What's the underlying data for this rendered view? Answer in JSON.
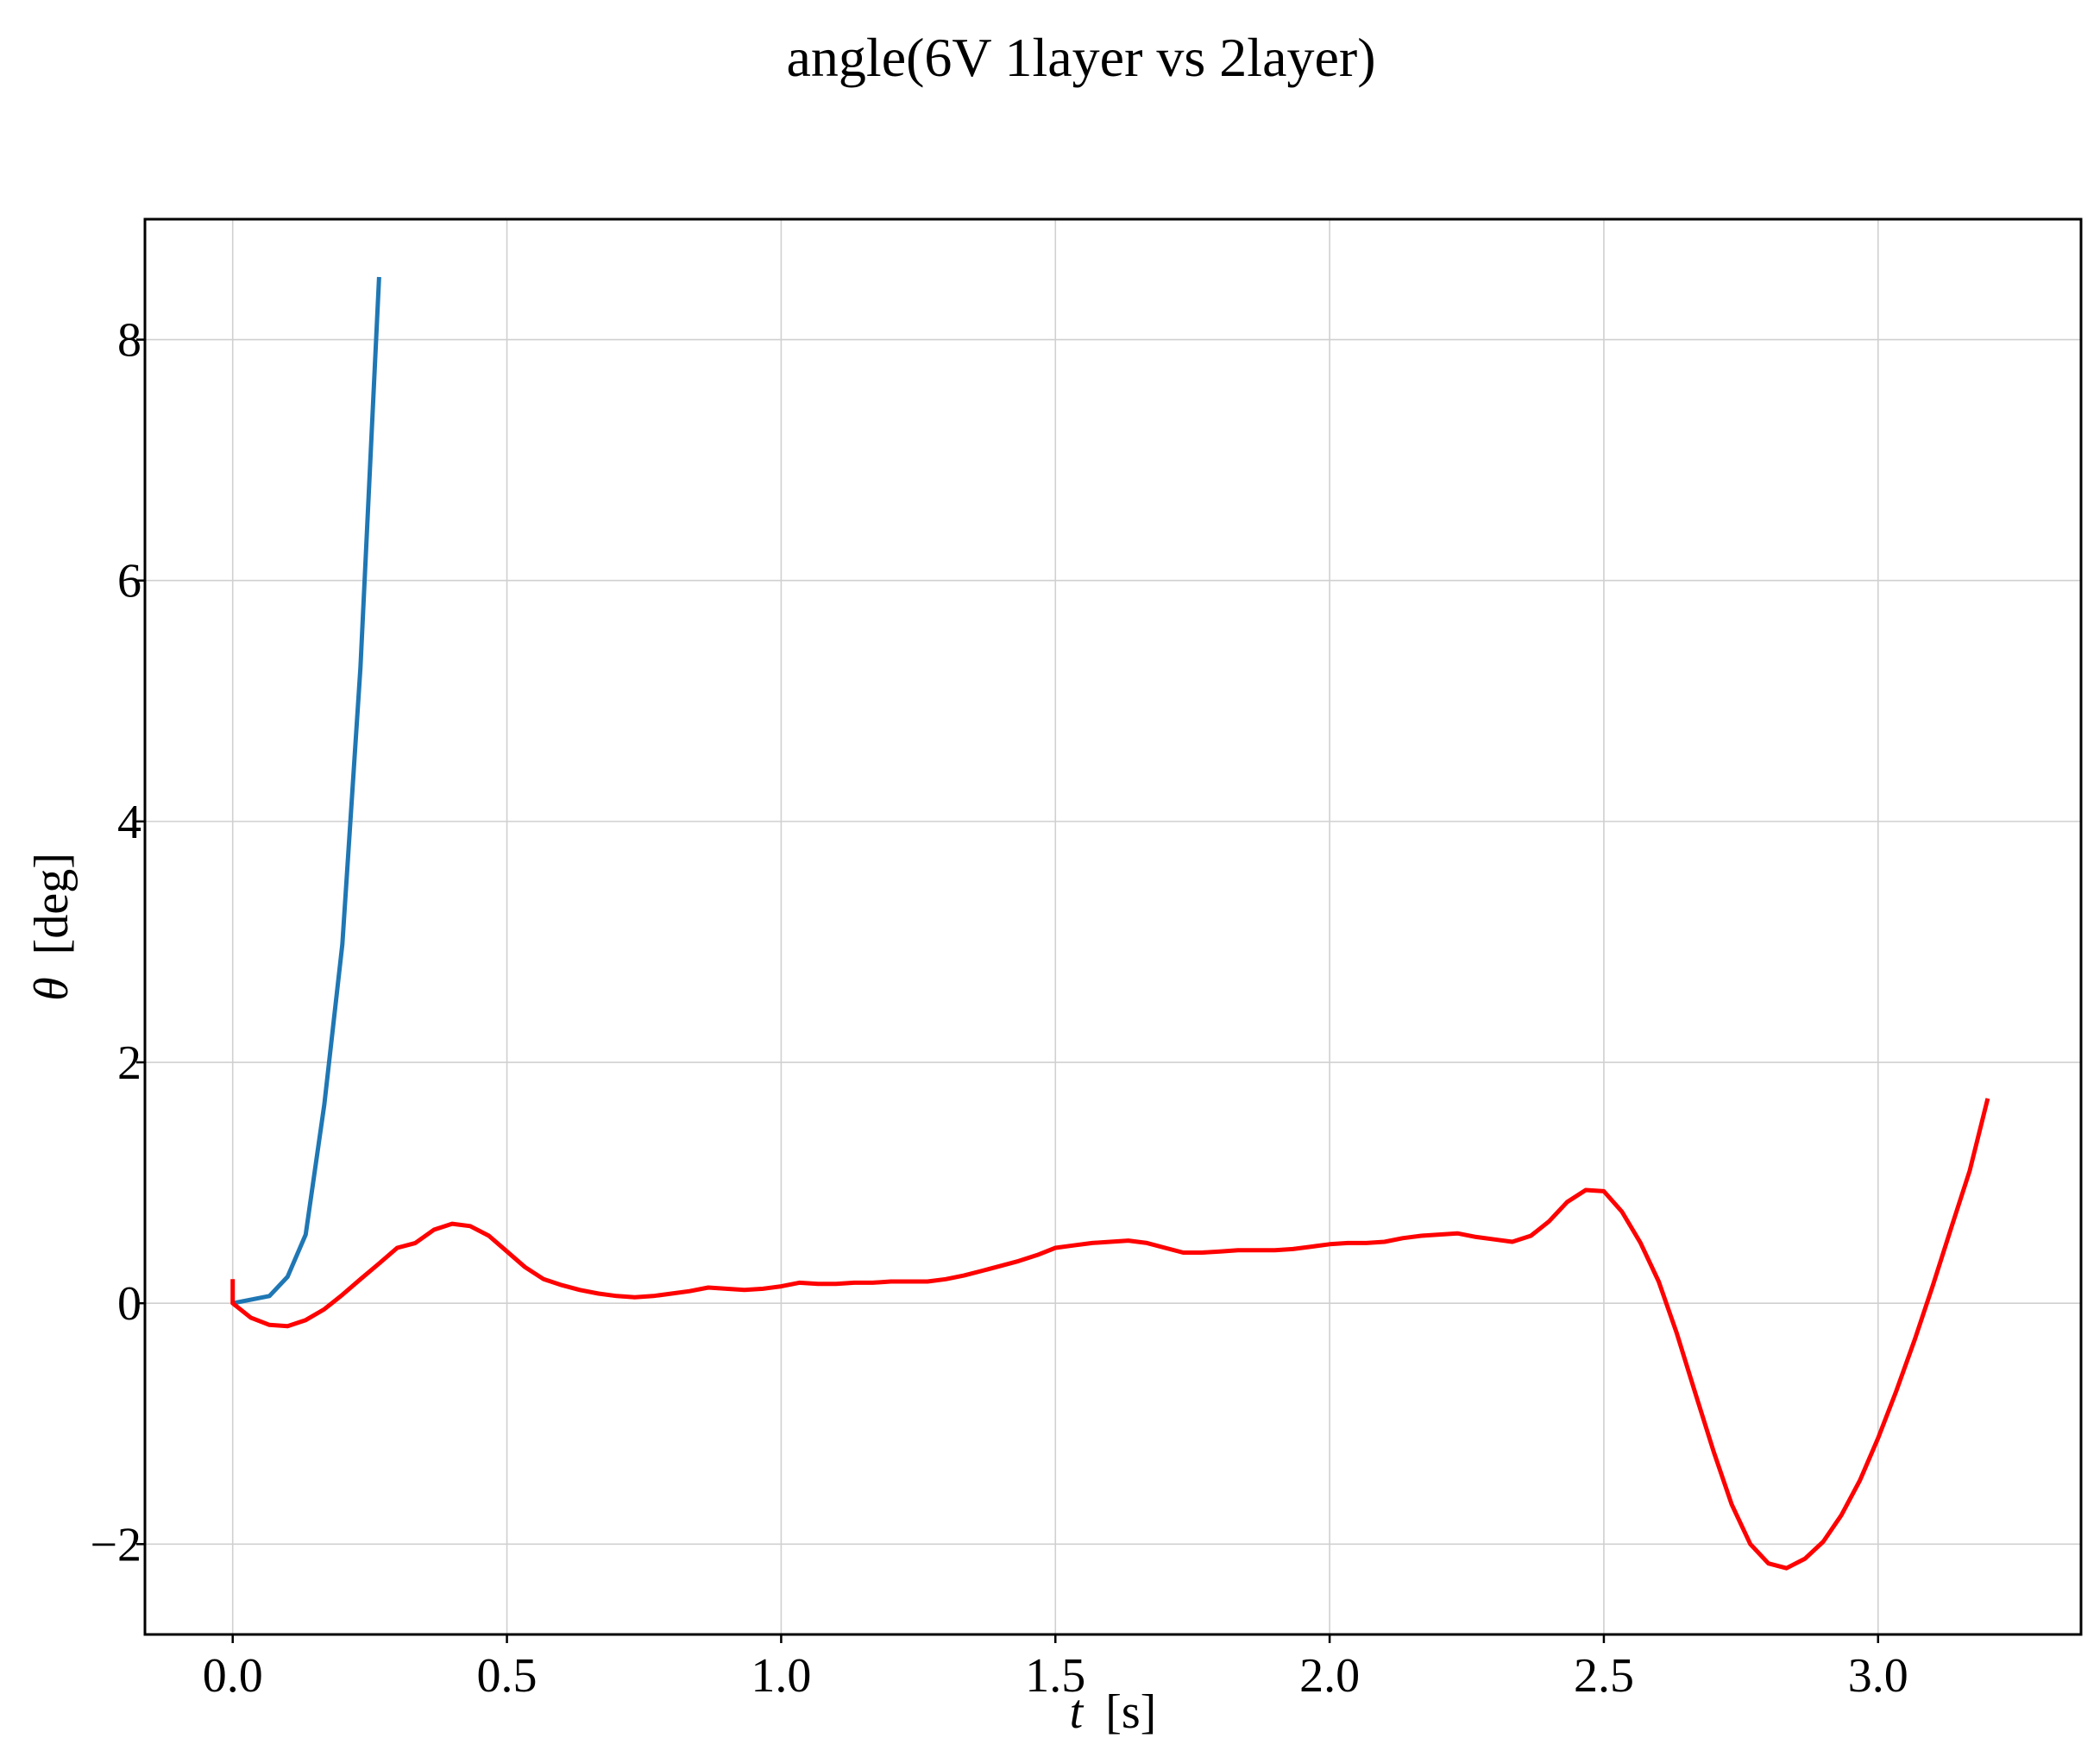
{
  "chart_data": {
    "type": "line",
    "title": "angle(6V 1layer vs 2layer)",
    "xlabel_var": "t",
    "xlabel_unit": "[s]",
    "ylabel_var": "θ",
    "ylabel_unit": "[deg]",
    "xlim": [
      -0.16,
      3.37
    ],
    "ylim": [
      -2.75,
      9.0
    ],
    "xticks": [
      0.0,
      0.5,
      1.0,
      1.5,
      2.0,
      2.5,
      3.0
    ],
    "xtick_labels": [
      "0.0",
      "0.5",
      "1.0",
      "1.5",
      "2.0",
      "2.5",
      "3.0"
    ],
    "yticks": [
      -2,
      0,
      2,
      4,
      6,
      8
    ],
    "ytick_labels": [
      "−2",
      "0",
      "2",
      "4",
      "6",
      "8"
    ],
    "grid": true,
    "series": [
      {
        "color": "#1f77b4",
        "x": [
          0.0,
          0.067,
          0.1,
          0.133,
          0.167,
          0.2,
          0.233,
          0.267
        ],
        "y": [
          0.0,
          0.06,
          0.22,
          0.57,
          1.65,
          2.98,
          5.28,
          8.52
        ]
      },
      {
        "color": "#ff0000",
        "x": [
          0.0,
          0.0,
          0.033,
          0.067,
          0.1,
          0.133,
          0.167,
          0.2,
          0.233,
          0.267,
          0.3,
          0.333,
          0.367,
          0.4,
          0.433,
          0.467,
          0.5,
          0.533,
          0.567,
          0.6,
          0.633,
          0.667,
          0.7,
          0.733,
          0.767,
          0.8,
          0.833,
          0.867,
          0.9,
          0.933,
          0.967,
          1.0,
          1.033,
          1.067,
          1.1,
          1.133,
          1.167,
          1.2,
          1.233,
          1.267,
          1.3,
          1.333,
          1.367,
          1.4,
          1.433,
          1.467,
          1.5,
          1.533,
          1.567,
          1.6,
          1.633,
          1.667,
          1.7,
          1.733,
          1.767,
          1.8,
          1.833,
          1.867,
          1.9,
          1.933,
          1.967,
          2.0,
          2.033,
          2.067,
          2.1,
          2.133,
          2.167,
          2.2,
          2.233,
          2.267,
          2.3,
          2.333,
          2.367,
          2.4,
          2.433,
          2.467,
          2.5,
          2.533,
          2.567,
          2.6,
          2.633,
          2.667,
          2.7,
          2.733,
          2.767,
          2.8,
          2.833,
          2.867,
          2.9,
          2.933,
          2.967,
          3.0,
          3.033,
          3.067,
          3.1,
          3.133,
          3.167,
          3.2
        ],
        "y": [
          0.2,
          0.0,
          -0.12,
          -0.18,
          -0.19,
          -0.14,
          -0.05,
          0.07,
          0.2,
          0.33,
          0.46,
          0.5,
          0.61,
          0.66,
          0.64,
          0.56,
          0.43,
          0.3,
          0.2,
          0.15,
          0.11,
          0.08,
          0.06,
          0.05,
          0.06,
          0.08,
          0.1,
          0.13,
          0.12,
          0.11,
          0.12,
          0.14,
          0.17,
          0.16,
          0.16,
          0.17,
          0.17,
          0.18,
          0.18,
          0.18,
          0.2,
          0.23,
          0.27,
          0.31,
          0.35,
          0.4,
          0.46,
          0.48,
          0.5,
          0.51,
          0.52,
          0.5,
          0.46,
          0.42,
          0.42,
          0.43,
          0.44,
          0.44,
          0.44,
          0.45,
          0.47,
          0.49,
          0.5,
          0.5,
          0.51,
          0.54,
          0.56,
          0.57,
          0.58,
          0.55,
          0.53,
          0.51,
          0.56,
          0.68,
          0.84,
          0.94,
          0.93,
          0.76,
          0.5,
          0.18,
          -0.25,
          -0.75,
          -1.23,
          -1.67,
          -2.0,
          -2.16,
          -2.2,
          -2.12,
          -1.98,
          -1.76,
          -1.47,
          -1.12,
          -0.73,
          -0.3,
          0.15,
          0.62,
          1.1,
          1.7
        ]
      }
    ]
  }
}
